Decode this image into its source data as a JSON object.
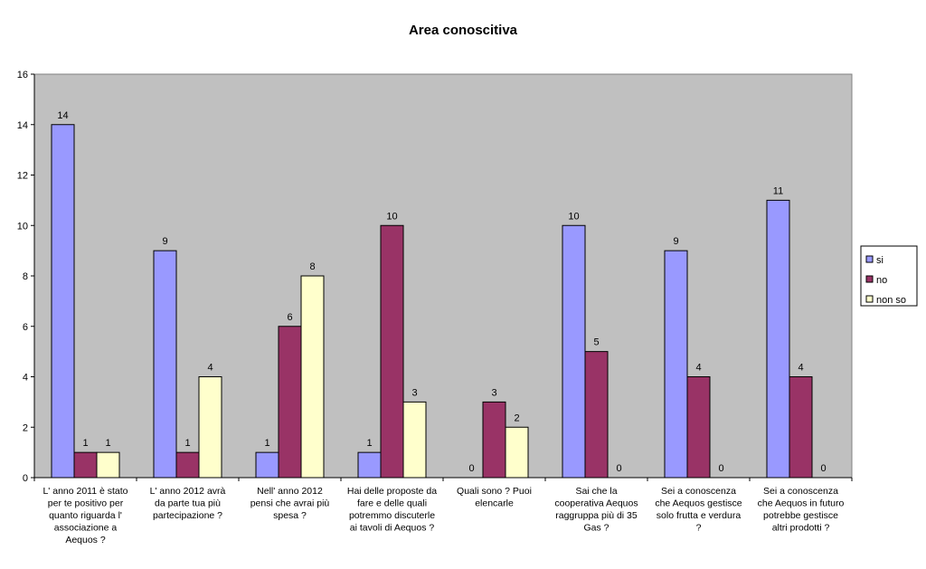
{
  "chart_data": {
    "type": "bar",
    "title": "Area conoscitiva",
    "xlabel": "",
    "ylabel": "",
    "ylim": [
      0,
      16
    ],
    "yticks": [
      0,
      2,
      4,
      6,
      8,
      10,
      12,
      14,
      16
    ],
    "grid": false,
    "legend_position": "right",
    "categories": [
      [
        "L' anno 2011 è stato",
        "per te positivo per",
        "quanto riguarda l'",
        "associazione a",
        "Aequos  ?"
      ],
      [
        "L' anno 2012 avrà",
        "da parte tua più",
        "partecipazione  ?"
      ],
      [
        "Nell' anno 2012",
        "pensi che avrai più",
        "spesa  ?"
      ],
      [
        "Hai delle proposte da",
        "fare e delle quali",
        "potremmo discuterle",
        "ai tavoli di Aequos  ?"
      ],
      [
        "Quali sono ? Puoi",
        "elencarle"
      ],
      [
        "Sai che la",
        "cooperativa Aequos",
        "raggruppa più di 35",
        "Gas  ?"
      ],
      [
        "Sei a conoscenza",
        "che Aequos gestisce",
        "solo frutta e verdura",
        "?"
      ],
      [
        "Sei a conoscenza",
        "che Aequos in futuro",
        "potrebbe gestisce",
        "altri prodotti  ?"
      ]
    ],
    "series": [
      {
        "name": "si",
        "color": "#9999FF",
        "values": [
          14,
          9,
          1,
          1,
          0,
          10,
          9,
          11
        ]
      },
      {
        "name": "no",
        "color": "#993366",
        "values": [
          1,
          1,
          6,
          10,
          3,
          5,
          4,
          4
        ]
      },
      {
        "name": "non so",
        "color": "#FFFFCC",
        "values": [
          1,
          4,
          8,
          3,
          2,
          0,
          0,
          0
        ]
      }
    ]
  }
}
